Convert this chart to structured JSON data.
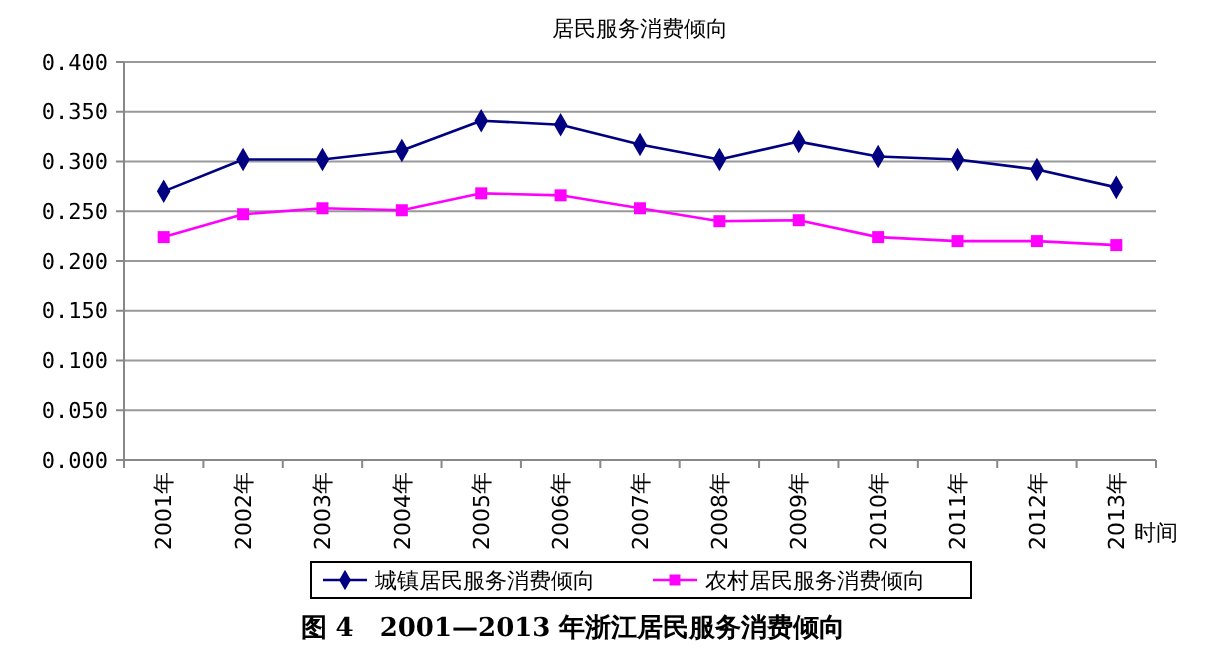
{
  "chart_data": {
    "type": "line",
    "title": "居民服务消费倾向",
    "xlabel": "时间",
    "categories": [
      "2001年",
      "2002年",
      "2003年",
      "2004年",
      "2005年",
      "2006年",
      "2007年",
      "2008年",
      "2009年",
      "2010年",
      "2011年",
      "2012年",
      "2013年"
    ],
    "series": [
      {
        "name": "城镇居民服务消费倾向",
        "color": "#000080",
        "marker": "diamond",
        "values": [
          0.27,
          0.302,
          0.302,
          0.311,
          0.341,
          0.337,
          0.317,
          0.302,
          0.32,
          0.305,
          0.302,
          0.292,
          0.274
        ]
      },
      {
        "name": "农村居民服务消费倾向",
        "color": "#ff00ff",
        "marker": "square",
        "values": [
          0.224,
          0.247,
          0.253,
          0.251,
          0.268,
          0.266,
          0.253,
          0.24,
          0.241,
          0.224,
          0.22,
          0.22,
          0.216
        ]
      }
    ],
    "ylim": [
      0,
      0.4
    ],
    "yticks": [
      {
        "value": 0,
        "label": "0.000"
      },
      {
        "value": 0.05,
        "label": "0.050"
      },
      {
        "value": 0.1,
        "label": "0.100"
      },
      {
        "value": 0.15,
        "label": "0.150"
      },
      {
        "value": 0.2,
        "label": "0.200"
      },
      {
        "value": 0.25,
        "label": "0.250"
      },
      {
        "value": 0.3,
        "label": "0.300"
      },
      {
        "value": 0.35,
        "label": "0.350"
      },
      {
        "value": 0.4,
        "label": "0.400"
      }
    ],
    "grid": "y",
    "legend": "bottom",
    "line_style": "solid",
    "annotations": [
      "图 4　2001—2013 年浙江居民服务消费倾向"
    ]
  }
}
